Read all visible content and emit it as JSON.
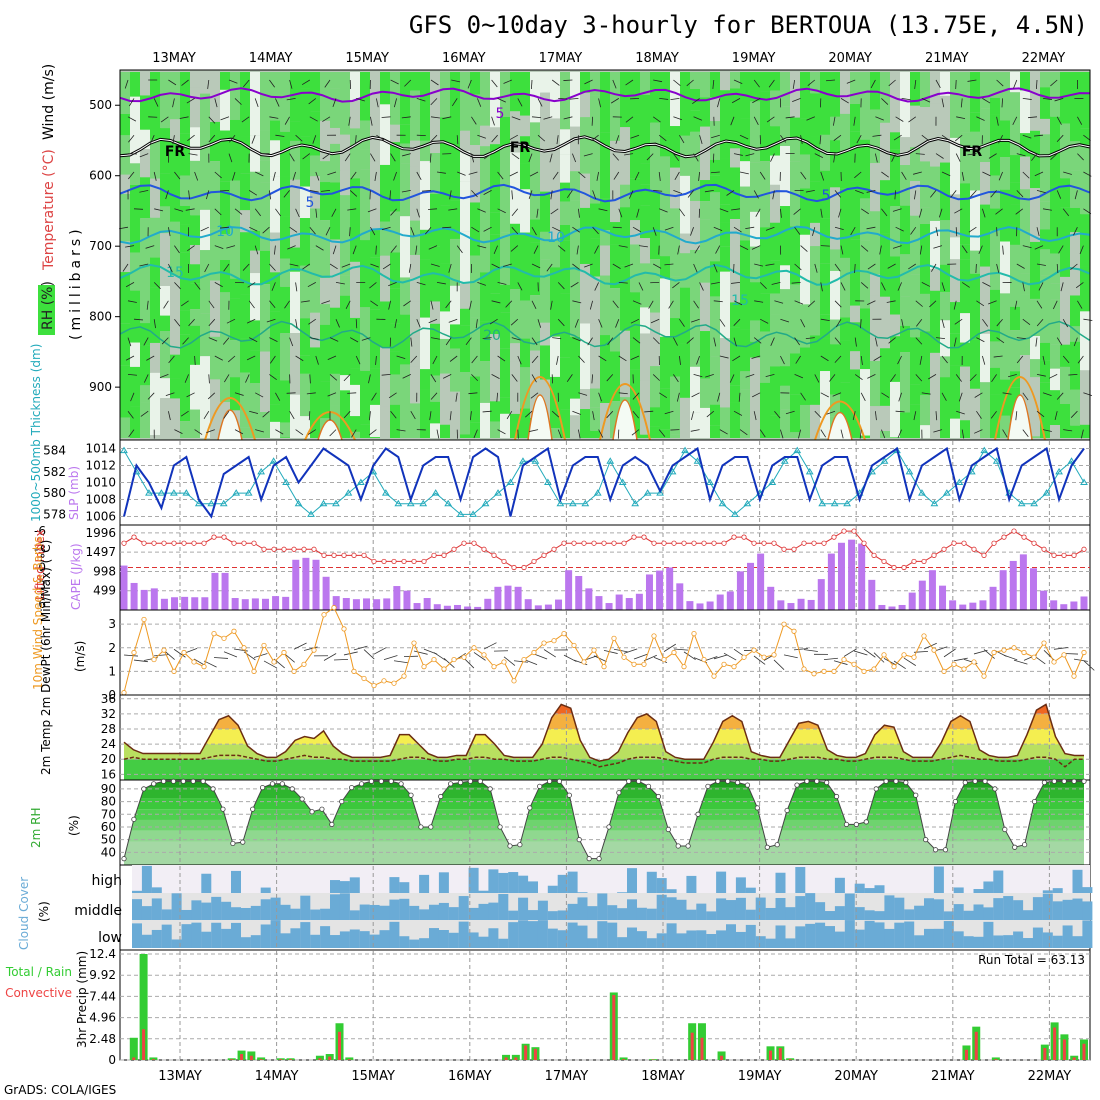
{
  "title": "GFS 0~10day 3-hourly for BERTOUA (13.75E, 4.5N)",
  "credit": "GrADS: COLA/IGES",
  "dates": [
    "13MAY",
    "14MAY",
    "15MAY",
    "16MAY",
    "17MAY",
    "18MAY",
    "19MAY",
    "20MAY",
    "21MAY",
    "22MAY"
  ],
  "colors": {
    "rh_green": "#3de03d",
    "rh_light": "#7ad67a",
    "rh_gray": "#b9c9b9",
    "temp_purple": "#8800cc",
    "temp_blue": "#2255dd",
    "temp_cyan": "#22aacc",
    "slp": "#1133bb",
    "thick": "#22aabb",
    "cape": "#bb77ee",
    "li": "#dd3333",
    "wind": "#ee9922",
    "cloud": "#6aabd6",
    "precip_total": "#33cc33",
    "precip_conv": "#ee4444"
  },
  "upper": {
    "ylabel": "(millibars)",
    "legend": {
      "rh": "RH (%)",
      "temperature": "Temperature (°C)",
      "wind": "Wind (m/s)"
    },
    "y_ticks": [
      "500",
      "600",
      "700",
      "800",
      "900"
    ],
    "contour_labels": [
      "5",
      "FR",
      "FR",
      "FR",
      "5",
      "5",
      "10",
      "10",
      "15",
      "15",
      "20"
    ]
  },
  "chart_data": [
    {
      "type": "line",
      "panel": "SLP and 1000-500mb thickness",
      "ylabel_left": "1000~500mb Thickness (dm)",
      "ylabel_right": "SLP (mb)",
      "left_ticks": [
        "584",
        "582",
        "580",
        "578"
      ],
      "right_ticks": [
        "1014",
        "1012",
        "1010",
        "1008",
        "1006"
      ],
      "series": [
        {
          "name": "SLP",
          "values": [
            1006,
            1012,
            1010,
            1007,
            1012,
            1013,
            1008,
            1006,
            1011,
            1012,
            1013,
            1008,
            1012,
            1013,
            1010,
            1012,
            1014,
            1013,
            1012,
            1008,
            1012,
            1014,
            1013,
            1008,
            1012,
            1013,
            1013,
            1008,
            1013,
            1014,
            1013,
            1006,
            1012,
            1013,
            1014,
            1008,
            1012,
            1013,
            1013,
            1008,
            1012,
            1013,
            1012,
            1009,
            1012,
            1013,
            1014,
            1008,
            1012,
            1013,
            1013,
            1008,
            1012,
            1013,
            1013,
            1008,
            1012,
            1013,
            1013,
            1008,
            1012,
            1013,
            1014,
            1008,
            1012,
            1013,
            1014,
            1008,
            1012,
            1013,
            1014,
            1008,
            1012,
            1013,
            1014,
            1008,
            1012,
            1014
          ]
        },
        {
          "name": "Thickness",
          "values": [
            584,
            582,
            580,
            580,
            580,
            580,
            579,
            579,
            579,
            580,
            580,
            582,
            583,
            581,
            579,
            578,
            579,
            579,
            580,
            581,
            582,
            580,
            579,
            579,
            579,
            580,
            579,
            578,
            578,
            579,
            580,
            581,
            583,
            583,
            581,
            579,
            579,
            579,
            580,
            583,
            581,
            579,
            580,
            580,
            582,
            584,
            583,
            581,
            579,
            578,
            579,
            580,
            581,
            583,
            584,
            582,
            579,
            579,
            579,
            580,
            582,
            583,
            584,
            582,
            580,
            579,
            580,
            581,
            582,
            584,
            583,
            580,
            579,
            579,
            580,
            582,
            583,
            581
          ]
        }
      ]
    },
    {
      "type": "bar",
      "panel": "CAPE and Lifted Index",
      "ylabel_left": "Lifted Index",
      "ylabel_right": "CAPE (J/kg)",
      "left_ticks": [
        "-6",
        "-3",
        "0",
        "3",
        "6"
      ],
      "right_ticks": [
        "1996",
        "1497",
        "998",
        "499"
      ],
      "series": [
        {
          "name": "CAPE",
          "values": [
            1150,
            700,
            520,
            560,
            290,
            330,
            340,
            330,
            330,
            960,
            960,
            310,
            280,
            300,
            290,
            360,
            340,
            1300,
            1350,
            1300,
            860,
            360,
            310,
            280,
            300,
            280,
            300,
            620,
            500,
            180,
            310,
            150,
            110,
            130,
            90,
            80,
            290,
            600,
            630,
            600,
            280,
            120,
            140,
            270,
            1030,
            880,
            560,
            360,
            180,
            400,
            310,
            420,
            920,
            1020,
            1100,
            690,
            230,
            170,
            220,
            400,
            480,
            1000,
            1220,
            1460,
            600,
            250,
            180,
            290,
            260,
            800,
            1460,
            1740,
            1820,
            1720,
            780,
            130,
            90,
            130,
            450,
            760,
            1030,
            630,
            250,
            140,
            190,
            250,
            600,
            1030,
            1270,
            1440,
            1080,
            500,
            250,
            150,
            220,
            350
          ]
        },
        {
          "name": "Lifted Index",
          "values": [
            -4,
            -5,
            -4,
            -4,
            -4,
            -4,
            -4,
            -4,
            -4,
            -5,
            -5,
            -4,
            -4,
            -4,
            -3,
            -3,
            -3,
            -3,
            -3,
            -3,
            -2,
            -2,
            -2,
            -2,
            -2,
            -1,
            -1,
            -1,
            -1,
            -1,
            -1,
            -2,
            -2,
            -3,
            -4,
            -4,
            -3,
            -2,
            -1,
            0,
            0,
            -1,
            -2,
            -3,
            -4,
            -4,
            -4,
            -4,
            -4,
            -4,
            -4,
            -5,
            -5,
            -4,
            -4,
            -4,
            -4,
            -4,
            -4,
            -4,
            -4,
            -5,
            -5,
            -4,
            -4,
            -4,
            -3,
            -3,
            -4,
            -4,
            -4,
            -5,
            -6,
            -6,
            -4,
            -2,
            -1,
            0,
            0,
            -1,
            -1,
            -2,
            -3,
            -4,
            -4,
            -3,
            -2,
            -4,
            -5,
            -6,
            -5,
            -4,
            -3,
            -2,
            -2,
            -2,
            -3
          ]
        }
      ]
    },
    {
      "type": "line",
      "panel": "10m wind",
      "ylabel": "10m Wind Speed & Barbs",
      "yunit": "(m/s)",
      "y_ticks": [
        "3",
        "2",
        "1",
        "0"
      ],
      "series": [
        {
          "name": "10m Wind Speed",
          "values": [
            0.1,
            1.8,
            3.2,
            1.5,
            1.9,
            1.0,
            1.8,
            1.4,
            1.2,
            2.6,
            2.4,
            2.7,
            2.0,
            1.0,
            2.1,
            1.4,
            1.8,
            1.0,
            1.3,
            1.9,
            3.4,
            3.7,
            2.8,
            1.0,
            0.7,
            0.4,
            0.6,
            0.5,
            0.8,
            2.2,
            1.2,
            1.5,
            1.1,
            1.5,
            1.6,
            2.0,
            1.7,
            1.2,
            1.4,
            0.6,
            1.5,
            1.8,
            2.2,
            2.3,
            2.6,
            2.1,
            1.4,
            1.9,
            1.2,
            2.4,
            1.6,
            1.3,
            1.3,
            2.5,
            1.5,
            1.8,
            1.2,
            2.6,
            1.5,
            0.8,
            1.3,
            1.2,
            1.6,
            1.9,
            1.6,
            1.7,
            3.0,
            2.7,
            1.1,
            0.9,
            1.0,
            1.0,
            1.5,
            1.3,
            1.0,
            1.1,
            1.7,
            1.2,
            1.7,
            1.6,
            2.5,
            1.9,
            1.0,
            1.3,
            1.1,
            1.4,
            0.8,
            1.8,
            1.9,
            2.0,
            1.8,
            1.6,
            2.2,
            1.4,
            1.7,
            0.8,
            1.8
          ]
        }
      ]
    },
    {
      "type": "area",
      "panel": "2m Temp / DewPt",
      "ylabel": "2m Temp 2m DewPt (6hr Min/Max) (°C)",
      "y_ticks": [
        "36",
        "32",
        "28",
        "24",
        "20",
        "16"
      ],
      "series": [
        {
          "name": "2m Temp",
          "values": [
            24.5,
            22.5,
            21.5,
            21.5,
            21.5,
            21.5,
            21.5,
            21.5,
            21.5,
            26,
            30.5,
            31.5,
            29,
            23.5,
            21.5,
            20.5,
            20.5,
            22,
            25,
            26,
            25.5,
            27.5,
            23.5,
            21.5,
            20.5,
            20.5,
            20.5,
            20.5,
            21,
            26.5,
            26.5,
            24,
            21.5,
            20.5,
            20.5,
            21,
            21,
            26.5,
            26.5,
            24,
            21,
            20.5,
            20.5,
            20.5,
            24,
            31,
            34.5,
            33.5,
            25,
            20.5,
            19.5,
            20,
            22,
            27,
            31,
            32,
            30,
            22,
            20.5,
            20,
            20,
            20,
            24.5,
            30,
            31.5,
            30,
            22,
            21,
            20.5,
            20.5,
            25,
            29.5,
            30,
            29,
            22.5,
            21,
            20.5,
            20.5,
            21.5,
            26.5,
            29,
            28.5,
            22,
            20.5,
            20.5,
            20.5,
            24.5,
            30,
            31.5,
            30,
            22.5,
            21,
            20.5,
            20.5,
            21,
            26.5,
            33,
            34.5,
            26,
            21.5,
            21,
            21
          ]
        },
        {
          "name": "2m DewPt",
          "values": [
            20,
            20.5,
            20,
            20,
            20,
            20,
            20,
            20,
            20,
            20.5,
            21,
            21,
            21,
            20.5,
            20,
            19.5,
            19.5,
            20,
            20.5,
            21,
            20.5,
            20.5,
            20,
            20,
            19.5,
            19.5,
            19.5,
            19.5,
            19.5,
            20,
            20.5,
            20.5,
            20,
            19.5,
            19.5,
            20,
            20,
            20.5,
            20.5,
            20,
            20,
            19.5,
            19.5,
            19.5,
            20,
            20.5,
            20.5,
            20,
            19.5,
            19,
            18,
            18.5,
            19,
            20,
            20.5,
            20.5,
            20.5,
            20,
            19.5,
            19,
            19,
            19,
            20,
            20.5,
            20.5,
            20.5,
            20,
            20,
            19.5,
            19.5,
            20,
            20.5,
            20.5,
            20.5,
            20,
            20,
            19.5,
            19.5,
            20,
            20.5,
            20.5,
            20.5,
            20,
            19.5,
            19.5,
            19.5,
            20,
            20.5,
            21,
            20.5,
            20,
            20,
            19.5,
            19.5,
            19.5,
            20,
            20.5,
            20.5,
            20,
            18,
            20,
            20
          ]
        }
      ]
    },
    {
      "type": "area",
      "panel": "2m RH",
      "ylabel": "2m RH",
      "yunit": "(%)",
      "y_ticks": [
        "90",
        "80",
        "70",
        "60",
        "50",
        "40"
      ],
      "series": [
        {
          "name": "2m RH",
          "values": [
            35,
            66,
            90,
            94,
            96,
            96,
            96,
            96,
            96,
            90,
            74,
            47,
            48,
            74,
            91,
            94,
            94,
            90,
            82,
            72,
            74,
            62,
            80,
            91,
            94,
            96,
            96,
            96,
            94,
            85,
            60,
            60,
            84,
            94,
            95,
            96,
            96,
            90,
            60,
            45,
            46,
            75,
            92,
            96,
            96,
            85,
            50,
            35,
            35,
            60,
            87,
            96,
            96,
            92,
            84,
            58,
            45,
            45,
            70,
            92,
            96,
            96,
            95,
            93,
            75,
            44,
            46,
            73,
            93,
            96,
            96,
            95,
            84,
            62,
            62,
            64,
            90,
            96,
            96,
            95,
            85,
            50,
            42,
            42,
            80,
            95,
            96,
            96,
            90,
            58,
            44,
            46,
            80,
            95,
            96,
            96,
            96,
            96
          ]
        }
      ]
    },
    {
      "type": "heatmap",
      "panel": "Cloud Cover",
      "ylabel": "Cloud Cover",
      "yunit": "(%)",
      "rows": [
        "high",
        "middle",
        "low"
      ]
    },
    {
      "type": "bar",
      "panel": "3hr Precip",
      "ylabel": "3hr Precip (mm)",
      "legend_total": "Total / Rain",
      "legend_conv": "Convective",
      "run_total": "Run Total = 63.13",
      "y_ticks": [
        "12.4",
        "9.92",
        "7.44",
        "4.96",
        "2.48",
        "0"
      ],
      "series": [
        {
          "name": "Total",
          "values": [
            0,
            2.6,
            12.4,
            0.3,
            0,
            0,
            0,
            0,
            0,
            0,
            0,
            0.2,
            1.1,
            1,
            0.3,
            0,
            0.2,
            0.2,
            0,
            0,
            0.5,
            0.7,
            4.3,
            0.3,
            0,
            0,
            0,
            0,
            0,
            0,
            0,
            0,
            0,
            0,
            0,
            0,
            0,
            0,
            0,
            0.6,
            0.6,
            1.9,
            1.5,
            0,
            0,
            0,
            0,
            0,
            0,
            0,
            7.9,
            0.3,
            0,
            0,
            0.1,
            0,
            0,
            0,
            4.3,
            4.3,
            0,
            1,
            0,
            0,
            0,
            0,
            1.6,
            1.6,
            0.2,
            0,
            0,
            0,
            0,
            0,
            0,
            0,
            0,
            0,
            0,
            0,
            0,
            0,
            0,
            0,
            0,
            0,
            1.7,
            3.9,
            0,
            0.3,
            0,
            0,
            0,
            0,
            1.8,
            4.4,
            3,
            0.5,
            2.4
          ]
        },
        {
          "name": "Convective",
          "values": [
            0,
            0.3,
            3.6,
            0.1,
            0,
            0,
            0,
            0,
            0,
            0,
            0,
            0.1,
            0.7,
            0.5,
            0.1,
            0,
            0.1,
            0.1,
            0,
            0,
            0.2,
            0.4,
            3.3,
            0.1,
            0,
            0,
            0,
            0,
            0,
            0,
            0,
            0,
            0,
            0,
            0,
            0,
            0,
            0,
            0,
            0.3,
            0.3,
            1.7,
            1.3,
            0,
            0,
            0,
            0,
            0,
            0,
            0,
            7.6,
            0.1,
            0,
            0,
            0.05,
            0,
            0,
            0,
            3.2,
            2.6,
            0,
            0.5,
            0,
            0,
            0,
            0,
            1.1,
            1.4,
            0.1,
            0,
            0,
            0,
            0,
            0,
            0,
            0,
            0,
            0,
            0,
            0,
            0,
            0,
            0,
            0,
            0,
            0,
            1.2,
            3.3,
            0,
            0.1,
            0,
            0,
            0,
            0,
            1.4,
            3.8,
            2.4,
            0.3,
            1.9
          ]
        }
      ]
    }
  ]
}
